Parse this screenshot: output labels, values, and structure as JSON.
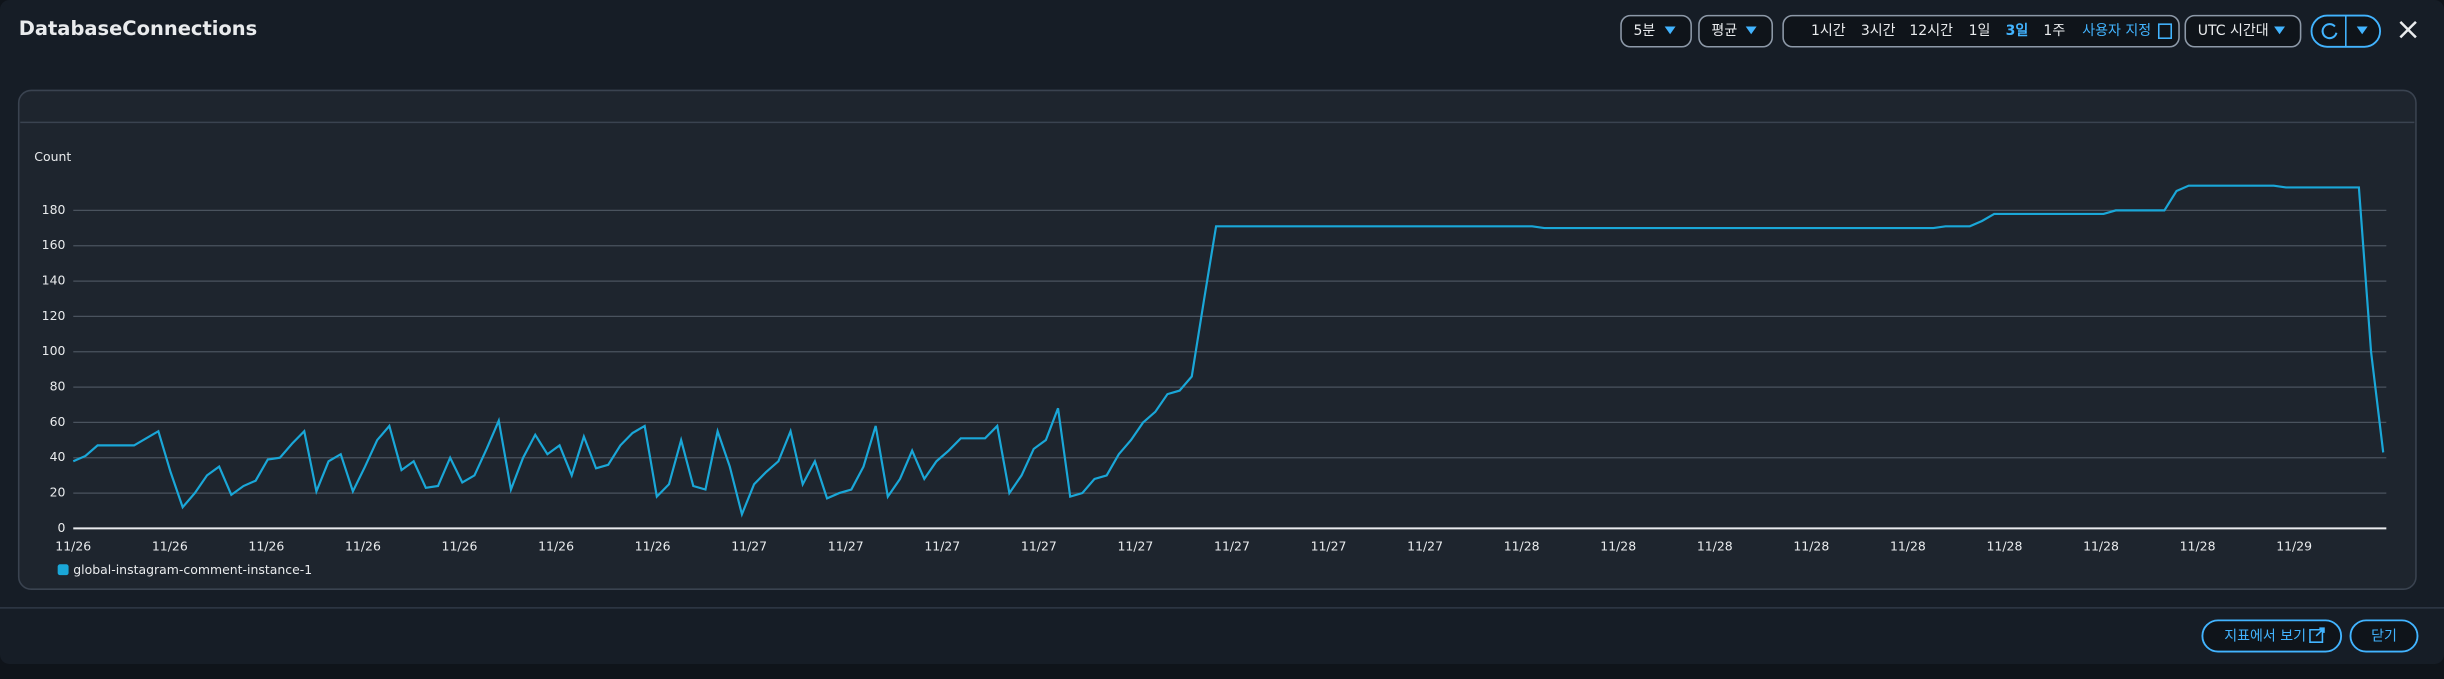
{
  "header": {
    "title": "DatabaseConnections",
    "period": "5분",
    "statistic": "평균",
    "ranges": [
      "1시간",
      "3시간",
      "12시간",
      "1일",
      "3일",
      "1주"
    ],
    "custom": "사용자 지정",
    "timezone": "UTC 시간대"
  },
  "chart_data": {
    "type": "line",
    "y_label": "Count",
    "x_labels": [
      "11/26",
      "11/26",
      "11/26",
      "11/26",
      "11/26",
      "11/26",
      "11/26",
      "11/27",
      "11/27",
      "11/27",
      "11/27",
      "11/27",
      "11/27",
      "11/27",
      "11/27",
      "11/28",
      "11/28",
      "11/28",
      "11/28",
      "11/28",
      "11/28",
      "11/28",
      "11/28",
      "11/29"
    ],
    "ylim": [
      0,
      200
    ],
    "yticks": [
      0,
      20,
      40,
      60,
      80,
      100,
      120,
      140,
      160,
      180
    ],
    "grid": true,
    "series": [
      {
        "name": "global-instagram-comment-instance-1",
        "color": "#1aa7d8",
        "values": [
          38,
          41,
          47,
          47,
          47,
          47,
          51,
          55,
          32,
          12,
          20,
          30,
          35,
          19,
          24,
          27,
          39,
          40,
          48,
          55,
          21,
          38,
          42,
          21,
          35,
          50,
          58,
          33,
          38,
          23,
          24,
          40,
          26,
          30,
          45,
          61,
          22,
          40,
          53,
          42,
          47,
          30,
          52,
          34,
          36,
          47,
          54,
          58,
          18,
          25,
          50,
          24,
          22,
          55,
          35,
          8,
          25,
          32,
          38,
          55,
          25,
          38,
          17,
          20,
          22,
          35,
          58,
          18,
          28,
          44,
          28,
          38,
          44,
          51,
          51,
          51,
          58,
          20,
          30,
          45,
          50,
          68,
          18,
          20,
          28,
          30,
          42,
          50,
          60,
          66,
          76,
          78,
          86,
          129,
          171,
          171,
          171,
          171,
          171,
          171,
          171,
          171,
          171,
          171,
          171,
          171,
          171,
          171,
          171,
          171,
          171,
          171,
          171,
          171,
          171,
          171,
          171,
          171,
          171,
          171,
          171,
          170,
          170,
          170,
          170,
          170,
          170,
          170,
          170,
          170,
          170,
          170,
          170,
          170,
          170,
          170,
          170,
          170,
          170,
          170,
          170,
          170,
          170,
          170,
          170,
          170,
          170,
          170,
          170,
          170,
          170,
          170,
          170,
          170,
          171,
          171,
          171,
          174,
          178,
          178,
          178,
          178,
          178,
          178,
          178,
          178,
          178,
          178,
          180,
          180,
          180,
          180,
          180,
          191,
          194,
          194,
          194,
          194,
          194,
          194,
          194,
          194,
          193,
          193,
          193,
          193,
          193,
          193,
          193,
          100,
          43
        ]
      }
    ]
  },
  "footer": {
    "view_in_metrics": "지표에서 보기",
    "close": "닫기"
  }
}
